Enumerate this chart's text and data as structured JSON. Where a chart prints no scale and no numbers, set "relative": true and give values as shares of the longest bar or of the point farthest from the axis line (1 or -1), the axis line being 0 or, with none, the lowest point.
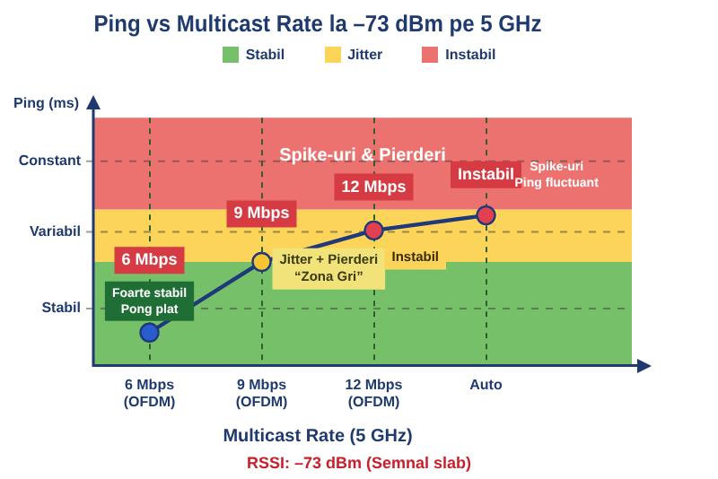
{
  "chart_data": {
    "type": "line",
    "title": "Ping vs Multicast Rate la –73 dBm pe 5 GHz",
    "xlabel": "Multicast Rate (5 GHz)",
    "relative": true,
    "categories": [
      "6 Mbps\n(OFDM)",
      "9 Mbps\n(OFDM)",
      "12 Mbps\n(OFDM)",
      "Auto"
    ],
    "series": [
      {
        "color": "#1f3a7a",
        "colors": [
          "#2a5cd0",
          "#f5c431",
          "#e04050",
          "#e04050"
        ],
        "values": [
          0.22,
          0.69,
          0.9,
          1
        ]
      }
    ],
    "marker": "circle",
    "grid": "x",
    "legend": "top",
    "bands": [
      {
        "axis": "y",
        "from": 0,
        "to": 0.69,
        "label": "Stabil",
        "color": "#77c06a"
      },
      {
        "axis": "y",
        "from": 0.69,
        "to": 1.04,
        "label": "Jitter",
        "color": "#fcd45a"
      },
      {
        "axis": "y",
        "from": 1.04,
        "to": 1.65,
        "label": "Instabil",
        "color": "#ec7270"
      }
    ],
    "ref_lines": [
      {
        "axis": "y",
        "value": 0.38,
        "label": "Stabil",
        "line_style": "dashed"
      },
      {
        "axis": "y",
        "value": 0.89,
        "label": "Variabil",
        "line_style": "dashed"
      },
      {
        "axis": "y",
        "value": 1.36,
        "label": "Constant",
        "line_style": "dashed"
      }
    ],
    "annotations": [
      {
        "text": "6 Mbps",
        "x": "6 Mbps\n(OFDM)",
        "y": 0.7
      },
      "Foarte stabil\nPong plat",
      {
        "text": "9 Mbps",
        "x": "9 Mbps\n(OFDM)",
        "y": 1.01
      },
      "Jitter + Pierderi\n“Zona Gri”",
      "12 Mbps",
      {
        "text": "Instabil",
        "x": "12 Mbps\n(OFDM)",
        "y": 0.72
      },
      "Instabil",
      "Spike-uri\nPing fluctuant",
      {
        "text": "Spike-uri & Pierderi",
        "y": 1.4
      },
      "RSSI: –73 dBm (Semnal slab)",
      "Ping (ms)"
    ]
  }
}
